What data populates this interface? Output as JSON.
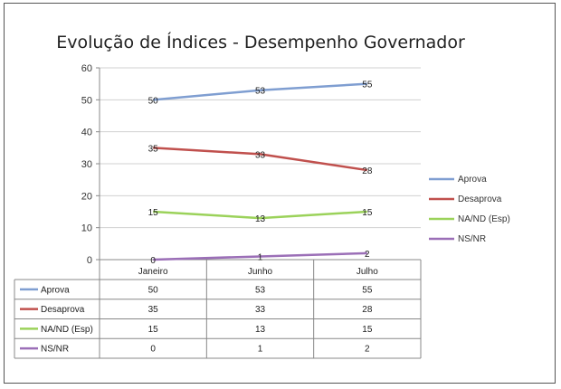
{
  "chart_data": {
    "type": "line",
    "title": "Evolução de Índices - Desempenho Governador",
    "categories": [
      "Janeiro",
      "Junho",
      "Julho"
    ],
    "ylim": [
      0,
      60
    ],
    "yticks": [
      0,
      10,
      20,
      30,
      40,
      50,
      60
    ],
    "grid": true,
    "legend_position": "right",
    "data_table": true,
    "series": [
      {
        "name": "Aprova",
        "values": [
          50,
          53,
          55
        ],
        "color": "#7f9ed1"
      },
      {
        "name": "Desaprova",
        "values": [
          35,
          33,
          28
        ],
        "color": "#c0504d"
      },
      {
        "name": "NA/ND (Esp)",
        "values": [
          15,
          13,
          15
        ],
        "color": "#9bd25a"
      },
      {
        "name": "NS/NR",
        "values": [
          0,
          1,
          2
        ],
        "color": "#9b6fb7"
      }
    ]
  }
}
